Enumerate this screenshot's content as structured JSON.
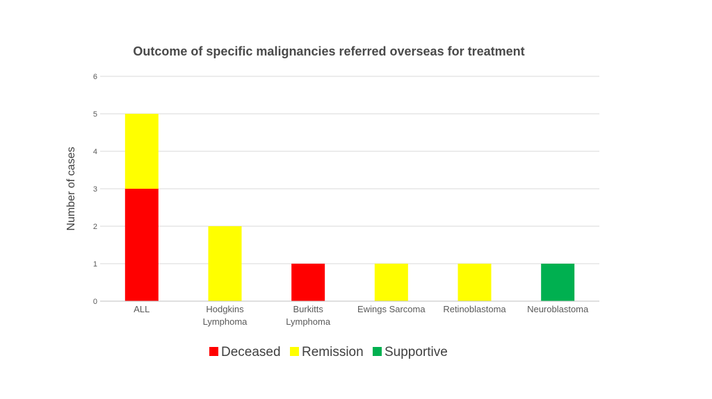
{
  "chart_data": {
    "type": "bar",
    "stacked": true,
    "title": "Outcome of specific malignancies referred overseas for treatment",
    "xlabel": "",
    "ylabel": "Number of cases",
    "ylim": [
      0,
      6
    ],
    "yticks": [
      0,
      1,
      2,
      3,
      4,
      5,
      6
    ],
    "grid": true,
    "legend_position": "bottom",
    "categories": [
      [
        "ALL"
      ],
      [
        "Hodgkins",
        "Lymphoma"
      ],
      [
        "Burkitts",
        "Lymphoma"
      ],
      [
        "Ewings Sarcoma"
      ],
      [
        "Retinoblastoma"
      ],
      [
        "Neuroblastoma"
      ]
    ],
    "series": [
      {
        "name": "Deceased",
        "color": "#ff0000",
        "values": [
          3,
          0,
          1,
          0,
          0,
          0
        ]
      },
      {
        "name": "Remission",
        "color": "#ffff00",
        "values": [
          2,
          2,
          0,
          1,
          1,
          0
        ]
      },
      {
        "name": "Supportive",
        "color": "#00b050",
        "values": [
          0,
          0,
          0,
          0,
          0,
          1
        ]
      }
    ]
  }
}
